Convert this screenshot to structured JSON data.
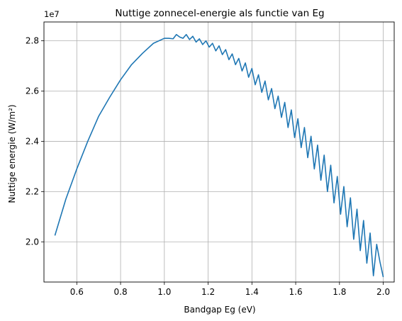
{
  "chart_data": {
    "type": "line",
    "title": "Nuttige zonnecel-energie als functie van Eg",
    "xlabel": "Bandgap Eg (eV)",
    "ylabel": "Nuttige energie (W/m²)",
    "y_offset_label": "1e7",
    "xlim": [
      0.45,
      2.05
    ],
    "ylim": [
      1.84,
      2.875
    ],
    "x_ticks": [
      0.6,
      0.8,
      1.0,
      1.2,
      1.4,
      1.6,
      1.8,
      2.0
    ],
    "x_tick_labels": [
      "0.6",
      "0.8",
      "1.0",
      "1.2",
      "1.4",
      "1.6",
      "1.8",
      "2.0"
    ],
    "y_ticks": [
      2.0,
      2.2,
      2.4,
      2.6,
      2.8
    ],
    "y_tick_labels": [
      "2.0",
      "2.2",
      "2.4",
      "2.6",
      "2.8"
    ],
    "grid": true,
    "line_color": "#1f77b4",
    "series": [
      {
        "x": [
          0.5,
          0.55,
          0.6,
          0.65,
          0.7,
          0.75,
          0.8,
          0.85,
          0.9,
          0.95,
          1.0,
          1.02,
          1.04,
          1.055,
          1.07,
          1.085,
          1.1,
          1.115,
          1.13,
          1.145,
          1.16,
          1.175,
          1.19,
          1.205,
          1.22,
          1.235,
          1.25,
          1.265,
          1.28,
          1.295,
          1.31,
          1.325,
          1.34,
          1.355,
          1.37,
          1.385,
          1.4,
          1.415,
          1.43,
          1.445,
          1.46,
          1.475,
          1.49,
          1.505,
          1.52,
          1.535,
          1.55,
          1.565,
          1.58,
          1.595,
          1.61,
          1.625,
          1.64,
          1.655,
          1.67,
          1.685,
          1.7,
          1.715,
          1.73,
          1.745,
          1.76,
          1.775,
          1.79,
          1.805,
          1.82,
          1.835,
          1.85,
          1.865,
          1.88,
          1.895,
          1.91,
          1.925,
          1.94,
          1.955,
          1.97,
          1.985,
          2.0
        ],
        "y": [
          2.025,
          2.17,
          2.29,
          2.4,
          2.5,
          2.575,
          2.645,
          2.705,
          2.75,
          2.79,
          2.81,
          2.81,
          2.808,
          2.825,
          2.815,
          2.81,
          2.825,
          2.805,
          2.818,
          2.795,
          2.808,
          2.785,
          2.8,
          2.775,
          2.79,
          2.76,
          2.78,
          2.745,
          2.765,
          2.725,
          2.748,
          2.705,
          2.73,
          2.68,
          2.712,
          2.655,
          2.69,
          2.625,
          2.665,
          2.595,
          2.64,
          2.565,
          2.61,
          2.53,
          2.58,
          2.495,
          2.555,
          2.455,
          2.525,
          2.415,
          2.49,
          2.375,
          2.455,
          2.335,
          2.42,
          2.29,
          2.385,
          2.245,
          2.345,
          2.2,
          2.305,
          2.155,
          2.26,
          2.11,
          2.22,
          2.06,
          2.175,
          2.01,
          2.13,
          1.965,
          2.085,
          1.915,
          2.035,
          1.865,
          1.99,
          1.92,
          1.86
        ]
      }
    ]
  }
}
